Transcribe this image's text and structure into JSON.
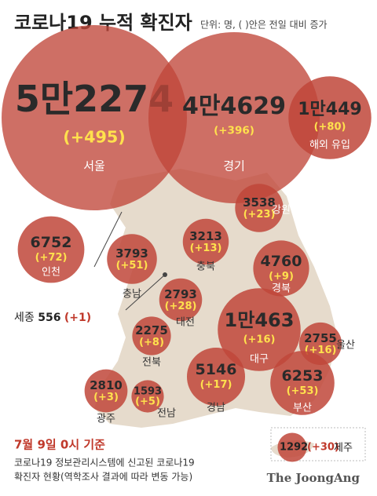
{
  "header": {
    "title": "코로나19 누적 확진자",
    "unit_note": "단위: 명, ( )안은 전일 대비 증가"
  },
  "regions": [
    {
      "name": "서울",
      "value": 52274,
      "value_label": "5만2274",
      "change": 495,
      "change_label": "(+495)"
    },
    {
      "name": "경기",
      "value": 44629,
      "value_label": "4만4629",
      "change": 396,
      "change_label": "(+396)"
    },
    {
      "name": "해외 유입",
      "value": 10449,
      "value_label": "1만449",
      "change": 80,
      "change_label": "(+80)"
    },
    {
      "name": "강원",
      "value": 3538,
      "value_label": "3538",
      "change": 23,
      "change_label": "(+23)"
    },
    {
      "name": "인천",
      "value": 6752,
      "value_label": "6752",
      "change": 72,
      "change_label": "(+72)"
    },
    {
      "name": "충북",
      "value": 3213,
      "value_label": "3213",
      "change": 13,
      "change_label": "(+13)"
    },
    {
      "name": "충남",
      "value": 3793,
      "value_label": "3793",
      "change": 51,
      "change_label": "(+51)"
    },
    {
      "name": "경북",
      "value": 4760,
      "value_label": "4760",
      "change": 9,
      "change_label": "(+9)"
    },
    {
      "name": "대전",
      "value": 2793,
      "value_label": "2793",
      "change": 28,
      "change_label": "(+28)"
    },
    {
      "name": "대구",
      "value": 10463,
      "value_label": "1만463",
      "change": 16,
      "change_label": "(+16)"
    },
    {
      "name": "울산",
      "value": 2755,
      "value_label": "2755",
      "change": 16,
      "change_label": "(+16)"
    },
    {
      "name": "전북",
      "value": 2275,
      "value_label": "2275",
      "change": 8,
      "change_label": "(+8)"
    },
    {
      "name": "광주",
      "value": 2810,
      "value_label": "2810",
      "change": 3,
      "change_label": "(+3)"
    },
    {
      "name": "전남",
      "value": 1593,
      "value_label": "1593",
      "change": 5,
      "change_label": "(+5)"
    },
    {
      "name": "경남",
      "value": 5146,
      "value_label": "5146",
      "change": 17,
      "change_label": "(+17)"
    },
    {
      "name": "부산",
      "value": 6253,
      "value_label": "6253",
      "change": 53,
      "change_label": "(+53)"
    },
    {
      "name": "제주",
      "value": 1292,
      "value_label": "1292",
      "change": 30,
      "change_label": "(+30)"
    }
  ],
  "sejong": {
    "name": "세종",
    "value": 556,
    "change_label": "(+1)"
  },
  "footer": {
    "date": "7월 9일 0시 기준",
    "note_1": "코로나19 정보관리시스템에 신고된 코로나19",
    "note_2": "확진자 현황(역학조사 결과에 따라 변동 가능)",
    "logo": "The JoongAng"
  }
}
